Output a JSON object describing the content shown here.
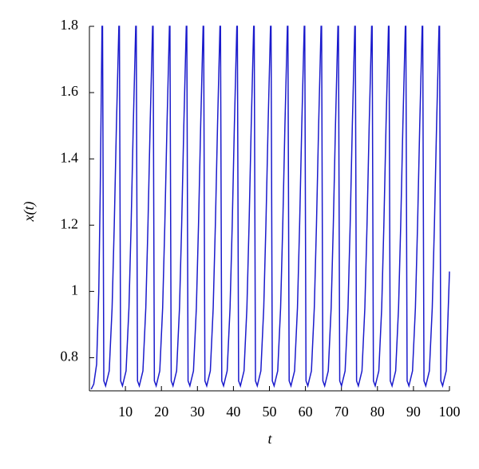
{
  "chart_data": {
    "type": "line",
    "xlabel": "t",
    "ylabel": "x(t)",
    "xlim": [
      0,
      100
    ],
    "ylim": [
      0.7,
      1.8
    ],
    "xticks": [
      10,
      20,
      30,
      40,
      50,
      60,
      70,
      80,
      90,
      100
    ],
    "yticks": [
      0.8,
      1,
      1.2,
      1.4,
      1.6,
      1.8
    ],
    "color": "#1a1acc",
    "x": [
      0.5,
      1.2,
      2.0,
      2.6,
      3.0,
      3.5,
      3.65,
      4.0,
      4.5,
      5.5,
      6.3,
      6.9,
      7.5,
      8.18,
      8.33,
      8.68,
      9.18,
      10.18,
      10.98,
      11.58,
      12.18,
      12.86,
      13.01,
      13.36,
      13.86,
      14.86,
      15.66,
      16.26,
      16.86,
      17.54,
      17.69,
      18.04,
      18.54,
      19.54,
      20.34,
      20.94,
      21.54,
      22.22,
      22.37,
      22.72,
      23.22,
      24.22,
      25.02,
      25.62,
      26.22,
      26.9,
      27.05,
      27.4,
      27.9,
      28.9,
      29.7,
      30.3,
      30.9,
      31.58,
      31.73,
      32.08,
      32.58,
      33.58,
      34.38,
      34.98,
      35.58,
      36.26,
      36.41,
      36.76,
      37.26,
      38.26,
      39.06,
      39.66,
      40.26,
      40.94,
      41.09,
      41.44,
      41.94,
      42.94,
      43.74,
      44.34,
      44.94,
      45.62,
      45.77,
      46.12,
      46.62,
      47.62,
      48.42,
      49.02,
      49.62,
      50.3,
      50.45,
      50.8,
      51.3,
      52.3,
      53.1,
      53.7,
      54.3,
      54.98,
      55.13,
      55.48,
      55.98,
      56.98,
      57.78,
      58.38,
      58.98,
      59.66,
      59.81,
      60.16,
      60.66,
      61.66,
      62.46,
      63.06,
      63.66,
      64.34,
      64.49,
      64.84,
      65.34,
      66.34,
      67.14,
      67.74,
      68.34,
      69.02,
      69.17,
      69.52,
      70.02,
      71.02,
      71.82,
      72.42,
      73.02,
      73.7,
      73.85,
      74.2,
      74.7,
      75.7,
      76.5,
      77.1,
      77.7,
      78.38,
      78.53,
      78.88,
      79.38,
      80.38,
      81.18,
      81.78,
      82.38,
      83.06,
      83.21,
      83.56,
      84.06,
      85.06,
      85.86,
      86.46,
      87.06,
      87.74,
      87.89,
      88.24,
      88.74,
      89.74,
      90.54,
      91.14,
      91.74,
      92.42,
      92.57,
      92.92,
      93.42,
      94.42,
      95.22,
      95.82,
      96.42,
      97.1,
      97.25,
      97.6,
      98.1,
      99.1,
      100
    ],
    "values": [
      0.705,
      0.72,
      0.78,
      1.0,
      1.3,
      1.8,
      1.8,
      0.73,
      0.715,
      0.76,
      0.95,
      1.2,
      1.5,
      1.8,
      1.8,
      0.73,
      0.715,
      0.76,
      0.95,
      1.2,
      1.5,
      1.8,
      1.8,
      0.73,
      0.715,
      0.76,
      0.95,
      1.2,
      1.5,
      1.8,
      1.8,
      0.73,
      0.715,
      0.76,
      0.95,
      1.2,
      1.5,
      1.8,
      1.8,
      0.73,
      0.715,
      0.76,
      0.95,
      1.2,
      1.5,
      1.8,
      1.8,
      0.73,
      0.715,
      0.76,
      0.95,
      1.2,
      1.5,
      1.8,
      1.8,
      0.73,
      0.715,
      0.76,
      0.95,
      1.2,
      1.5,
      1.8,
      1.8,
      0.73,
      0.715,
      0.76,
      0.95,
      1.2,
      1.5,
      1.8,
      1.8,
      0.73,
      0.715,
      0.76,
      0.95,
      1.2,
      1.5,
      1.8,
      1.8,
      0.73,
      0.715,
      0.76,
      0.95,
      1.2,
      1.5,
      1.8,
      1.8,
      0.73,
      0.715,
      0.76,
      0.95,
      1.2,
      1.5,
      1.8,
      1.8,
      0.73,
      0.715,
      0.76,
      0.95,
      1.2,
      1.5,
      1.8,
      1.8,
      0.73,
      0.715,
      0.76,
      0.95,
      1.2,
      1.5,
      1.8,
      1.8,
      0.73,
      0.715,
      0.76,
      0.95,
      1.2,
      1.5,
      1.8,
      1.8,
      0.73,
      0.715,
      0.76,
      0.95,
      1.2,
      1.5,
      1.8,
      1.8,
      0.73,
      0.715,
      0.76,
      0.95,
      1.2,
      1.5,
      1.8,
      1.8,
      0.73,
      0.715,
      0.76,
      0.95,
      1.2,
      1.5,
      1.8,
      1.8,
      0.73,
      0.715,
      0.76,
      0.95,
      1.2,
      1.5,
      1.8,
      1.8,
      0.73,
      0.715,
      0.76,
      0.95,
      1.2,
      1.5,
      1.8,
      1.8,
      0.73,
      0.715,
      0.76,
      0.95,
      1.2,
      1.5,
      1.8,
      1.8,
      0.73,
      0.715,
      0.76,
      1.06
    ]
  }
}
